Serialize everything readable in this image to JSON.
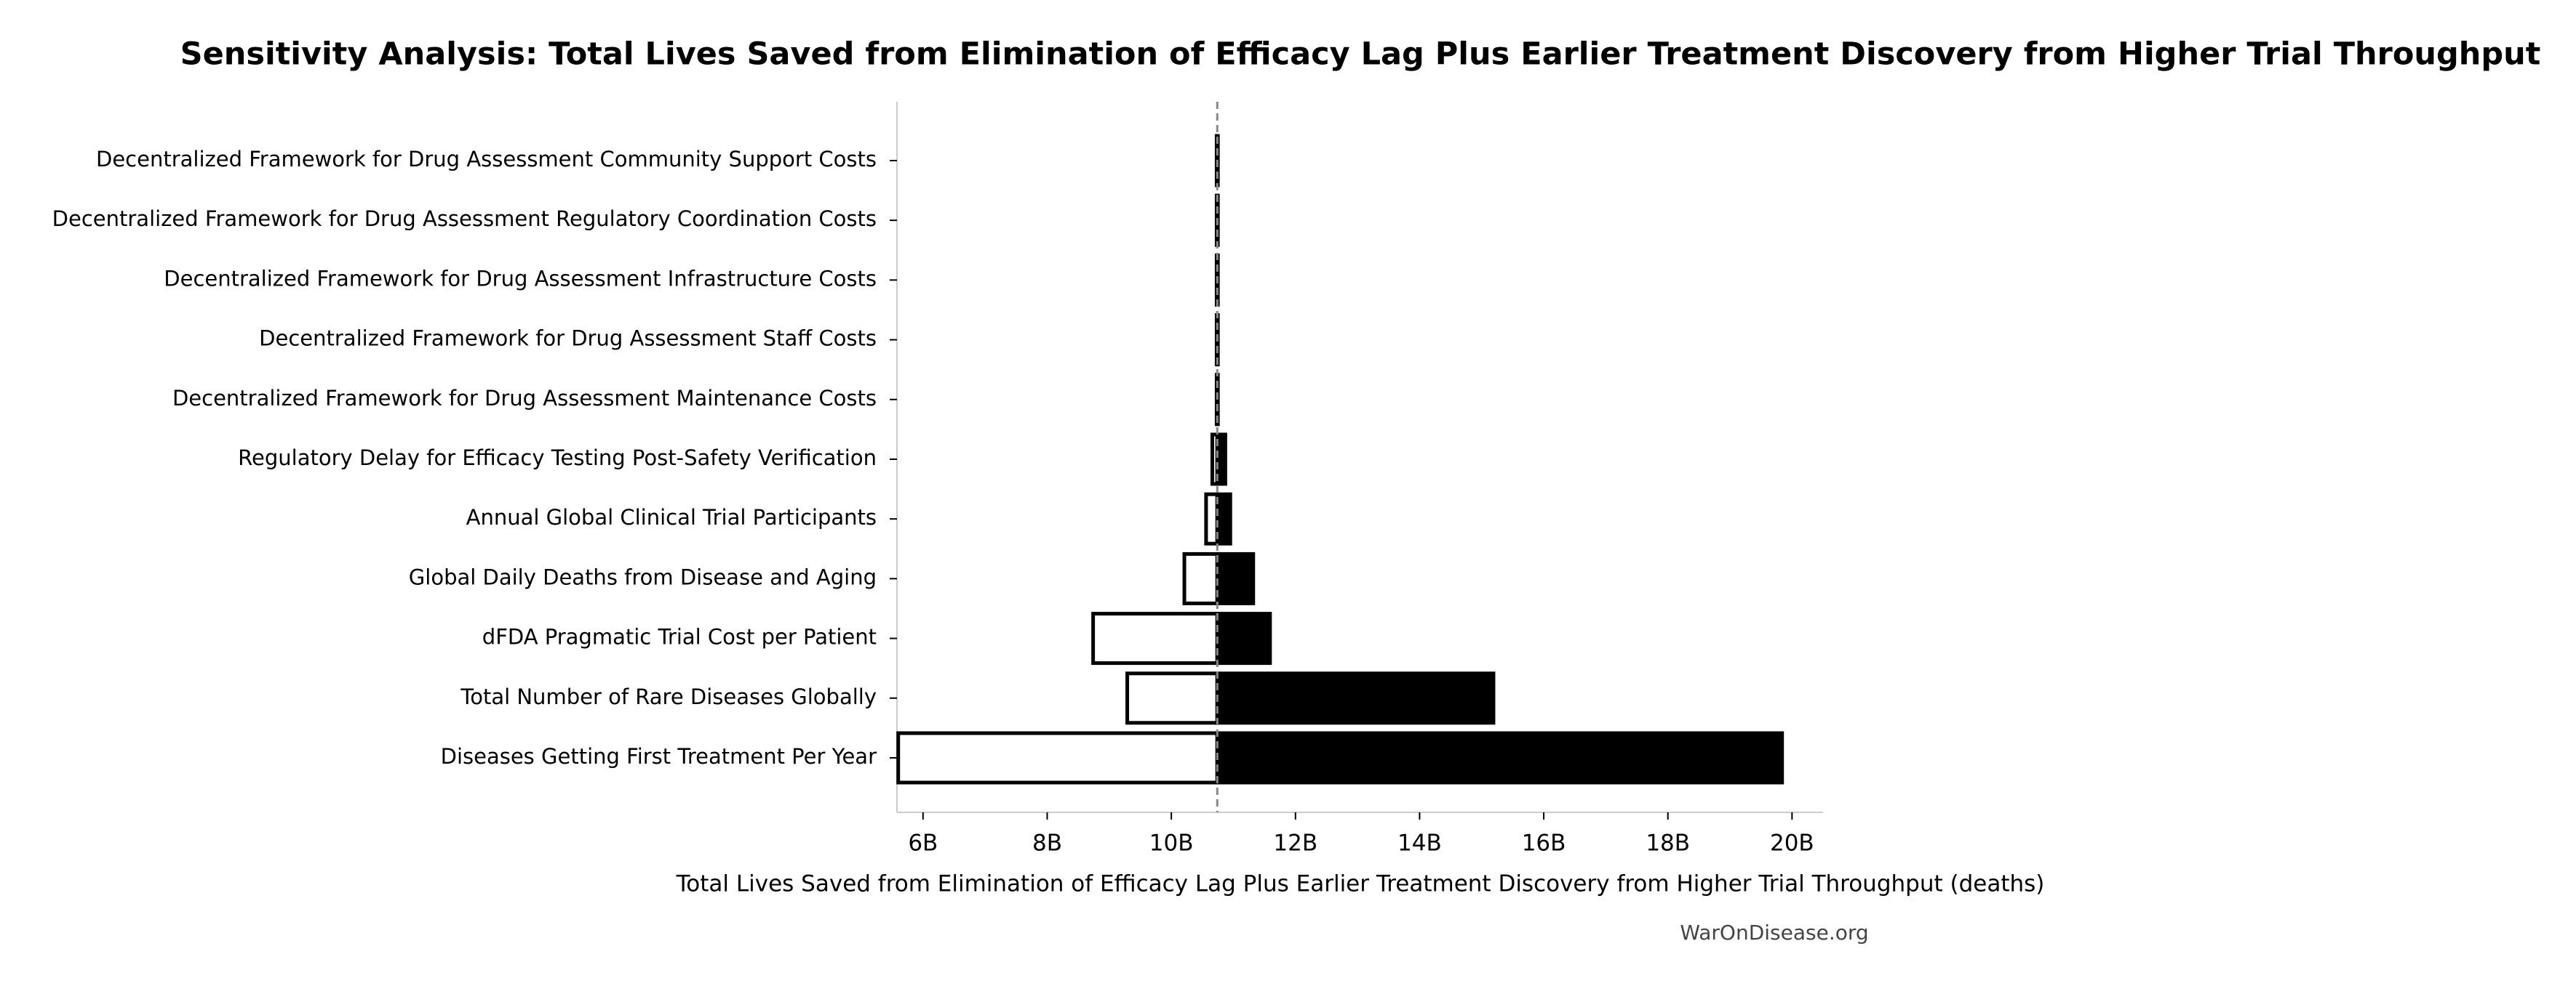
{
  "chart_data": {
    "type": "tornado",
    "title": "Sensitivity Analysis: Total Lives Saved from Elimination of Efficacy Lag Plus Earlier Treatment Discovery from Higher Trial Throughput",
    "xlabel": "Total Lives Saved from Elimination of Efficacy Lag Plus Earlier Treatment Discovery from Higher Trial Throughput (deaths)",
    "source": "WarOnDisease.org",
    "categories": [
      "Decentralized Framework for Drug Assessment Community Support Costs",
      "Decentralized Framework for Drug Assessment Regulatory Coordination Costs",
      "Decentralized Framework for Drug Assessment Infrastructure Costs",
      "Decentralized Framework for Drug Assessment Staff Costs",
      "Decentralized Framework for Drug Assessment Maintenance Costs",
      "Regulatory Delay for Efficacy Testing Post-Safety Verification",
      "Annual Global Clinical Trial Participants",
      "Global Daily Deaths from Disease and Aging",
      "dFDA Pragmatic Trial Cost per Patient",
      "Total Number of Rare Diseases Globally",
      "Diseases Getting First Treatment Per Year"
    ],
    "base": 10740000000,
    "low": [
      10730000000,
      10730000000,
      10730000000,
      10730000000,
      10730000000,
      10660000000,
      10560000000,
      10210000000,
      8740000000,
      9290000000,
      5600000000
    ],
    "high": [
      10750000000,
      10750000000,
      10750000000,
      10750000000,
      10750000000,
      10870000000,
      10950000000,
      11320000000,
      11590000000,
      15190000000,
      19840000000
    ],
    "low_color": "#ffffff",
    "high_color": "#000000",
    "xlim": [
      5580000000,
      20500000000
    ],
    "xticks": [
      {
        "value": 6000000000,
        "label": "6B"
      },
      {
        "value": 8000000000,
        "label": "8B"
      },
      {
        "value": 10000000000,
        "label": "10B"
      },
      {
        "value": 12000000000,
        "label": "12B"
      },
      {
        "value": 14000000000,
        "label": "14B"
      },
      {
        "value": 16000000000,
        "label": "16B"
      },
      {
        "value": 18000000000,
        "label": "18B"
      },
      {
        "value": 20000000000,
        "label": "20B"
      }
    ]
  }
}
